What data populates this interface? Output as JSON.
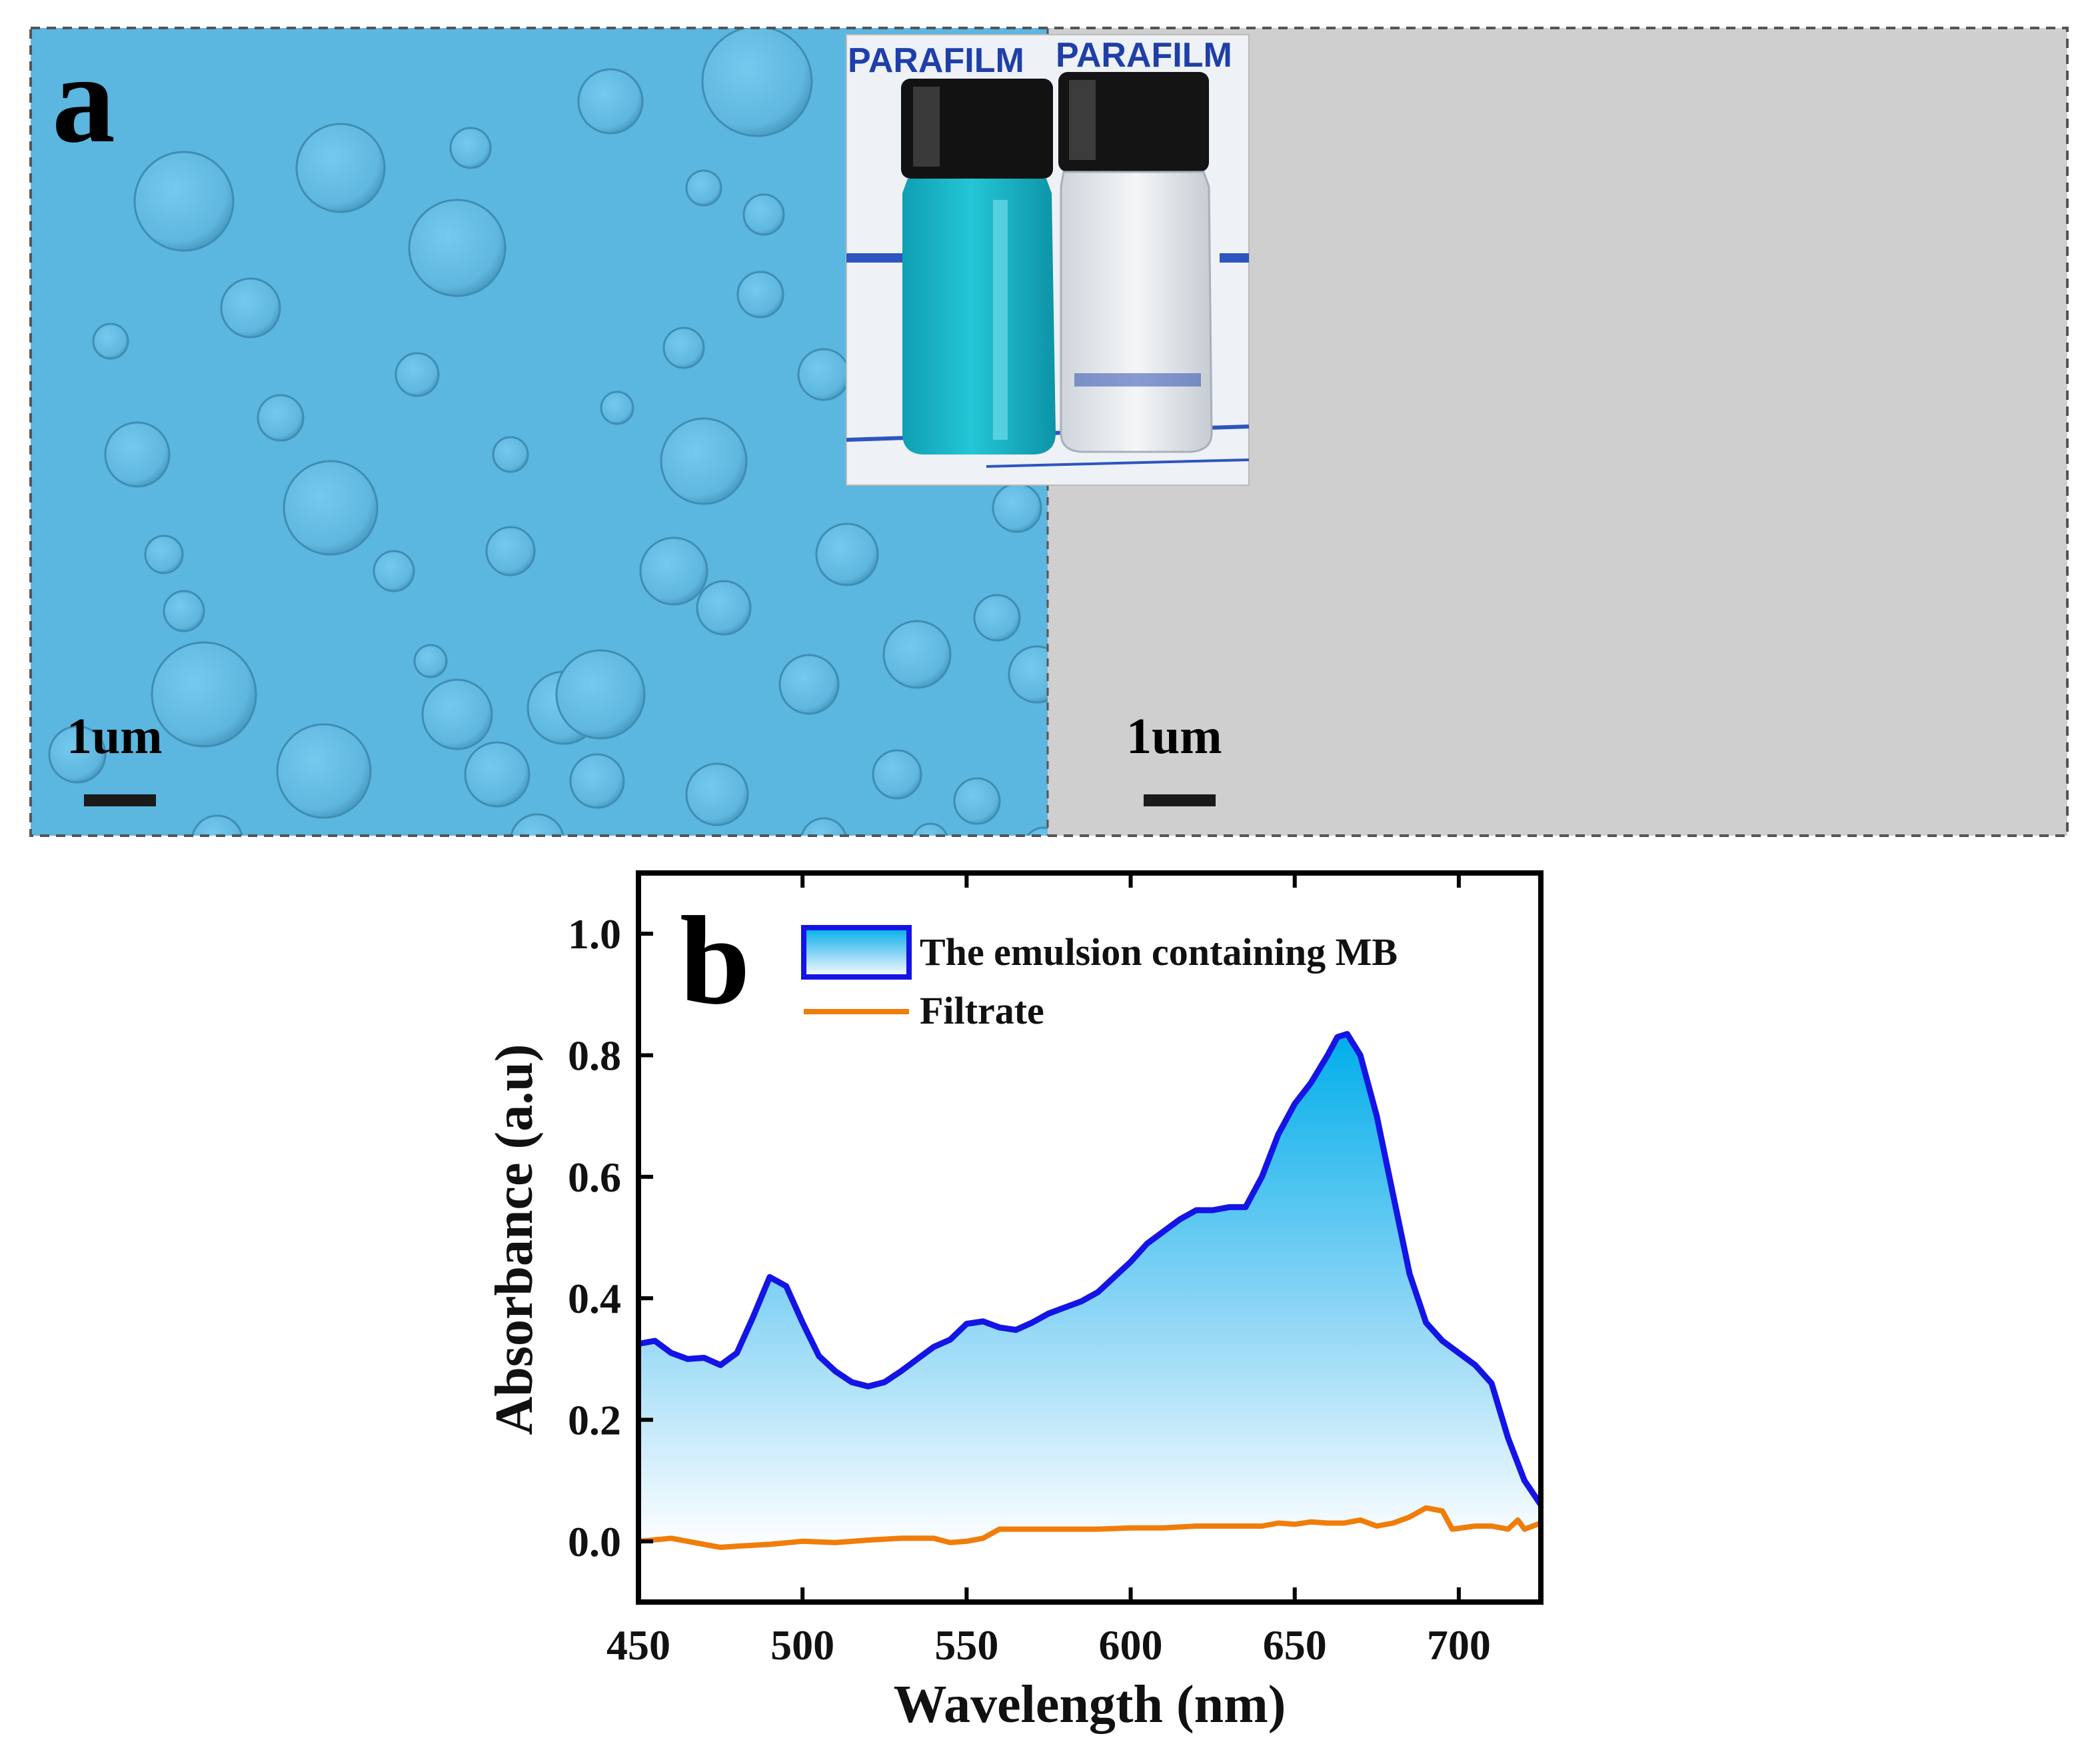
{
  "panel_a": {
    "letter": "a",
    "left_scale_text": "1um",
    "right_scale_text": "1um",
    "inset_label_1": "PARAFILM",
    "inset_label_2": "PARAFILM",
    "colors": {
      "micrograph": "#5bb6e0",
      "background_right": "#cfcfcf",
      "vial_blue": "#16b7c9"
    }
  },
  "panel_b": {
    "letter": "b"
  },
  "chart_data": {
    "type": "area",
    "xlabel": "Wavelength (nm)",
    "ylabel": "Absorbance (a.u)",
    "xlim": [
      450,
      725
    ],
    "ylim": [
      -0.1,
      1.1
    ],
    "x_ticks": [
      "450",
      "500",
      "550",
      "600",
      "650",
      "700"
    ],
    "y_ticks": [
      "0.0",
      "0.2",
      "0.4",
      "0.6",
      "0.8",
      "1.0"
    ],
    "legend_placement": "top-left",
    "grid": false,
    "series": [
      {
        "name": "The emulsion containing MB",
        "color": "#1414e6",
        "fill": "gradient-cyan",
        "points": [
          [
            450,
            0.325
          ],
          [
            455,
            0.33
          ],
          [
            460,
            0.31
          ],
          [
            465,
            0.3
          ],
          [
            470,
            0.302
          ],
          [
            475,
            0.29
          ],
          [
            480,
            0.31
          ],
          [
            485,
            0.37
          ],
          [
            490,
            0.435
          ],
          [
            495,
            0.42
          ],
          [
            500,
            0.36
          ],
          [
            505,
            0.305
          ],
          [
            510,
            0.28
          ],
          [
            515,
            0.262
          ],
          [
            520,
            0.255
          ],
          [
            525,
            0.262
          ],
          [
            530,
            0.28
          ],
          [
            535,
            0.3
          ],
          [
            540,
            0.32
          ],
          [
            545,
            0.332
          ],
          [
            550,
            0.358
          ],
          [
            555,
            0.362
          ],
          [
            560,
            0.352
          ],
          [
            565,
            0.348
          ],
          [
            570,
            0.36
          ],
          [
            575,
            0.375
          ],
          [
            580,
            0.385
          ],
          [
            585,
            0.395
          ],
          [
            590,
            0.41
          ],
          [
            595,
            0.435
          ],
          [
            600,
            0.46
          ],
          [
            605,
            0.49
          ],
          [
            610,
            0.51
          ],
          [
            615,
            0.53
          ],
          [
            620,
            0.545
          ],
          [
            625,
            0.545
          ],
          [
            630,
            0.55
          ],
          [
            635,
            0.55
          ],
          [
            640,
            0.6
          ],
          [
            645,
            0.67
          ],
          [
            650,
            0.72
          ],
          [
            655,
            0.755
          ],
          [
            660,
            0.8
          ],
          [
            663,
            0.83
          ],
          [
            666,
            0.835
          ],
          [
            670,
            0.8
          ],
          [
            675,
            0.7
          ],
          [
            680,
            0.57
          ],
          [
            685,
            0.44
          ],
          [
            690,
            0.36
          ],
          [
            695,
            0.33
          ],
          [
            700,
            0.31
          ],
          [
            705,
            0.29
          ],
          [
            710,
            0.26
          ],
          [
            715,
            0.17
          ],
          [
            720,
            0.1
          ],
          [
            725,
            0.06
          ]
        ]
      },
      {
        "name": "Filtrate",
        "color": "#f07d0a",
        "points": [
          [
            450,
            0.0
          ],
          [
            460,
            0.005
          ],
          [
            470,
            -0.005
          ],
          [
            475,
            -0.01
          ],
          [
            480,
            -0.008
          ],
          [
            490,
            -0.005
          ],
          [
            500,
            0.0
          ],
          [
            510,
            -0.002
          ],
          [
            520,
            0.002
          ],
          [
            530,
            0.005
          ],
          [
            540,
            0.005
          ],
          [
            545,
            -0.002
          ],
          [
            550,
            0.0
          ],
          [
            555,
            0.005
          ],
          [
            560,
            0.02
          ],
          [
            570,
            0.02
          ],
          [
            580,
            0.02
          ],
          [
            590,
            0.02
          ],
          [
            600,
            0.022
          ],
          [
            610,
            0.022
          ],
          [
            620,
            0.025
          ],
          [
            630,
            0.025
          ],
          [
            640,
            0.025
          ],
          [
            645,
            0.03
          ],
          [
            650,
            0.028
          ],
          [
            655,
            0.032
          ],
          [
            660,
            0.03
          ],
          [
            665,
            0.03
          ],
          [
            670,
            0.035
          ],
          [
            675,
            0.025
          ],
          [
            680,
            0.03
          ],
          [
            685,
            0.04
          ],
          [
            690,
            0.055
          ],
          [
            695,
            0.05
          ],
          [
            698,
            0.02
          ],
          [
            705,
            0.025
          ],
          [
            710,
            0.025
          ],
          [
            715,
            0.02
          ],
          [
            718,
            0.035
          ],
          [
            720,
            0.02
          ],
          [
            725,
            0.03
          ]
        ]
      }
    ]
  }
}
